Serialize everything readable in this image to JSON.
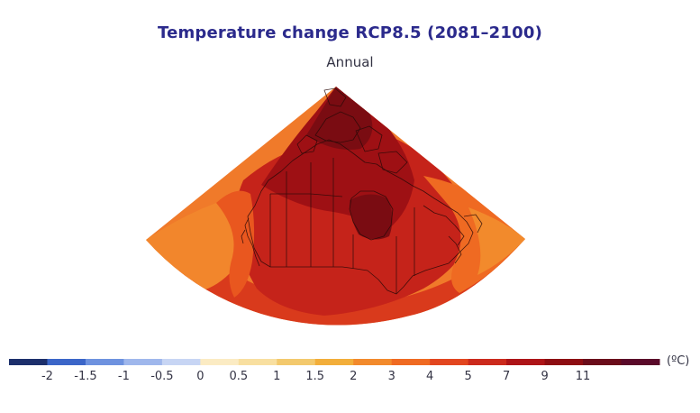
{
  "title": "Temperature change RCP8.5 (2081–2100)",
  "subtitle": "Annual",
  "legend": {
    "unit": "(ºC)",
    "colors": [
      "#1c2f6b",
      "#3b66c8",
      "#6e92df",
      "#9fb7ec",
      "#c7d5f4",
      "#fbebc3",
      "#f8dfa0",
      "#f3c96d",
      "#f2ae3a",
      "#f28a2c",
      "#ef6a22",
      "#e2461f",
      "#cb2a1c",
      "#ad1417",
      "#8d0d12",
      "#6a0c1a",
      "#5a0a2a"
    ],
    "ticks": [
      "-2",
      "-1.5",
      "-1",
      "-0.5",
      "0",
      "0.5",
      "1",
      "1.5",
      "2",
      "3",
      "4",
      "5",
      "7",
      "9",
      "11"
    ]
  },
  "map": {
    "region": "Canada",
    "scenario": "RCP8.5",
    "period": "2081–2100"
  }
}
